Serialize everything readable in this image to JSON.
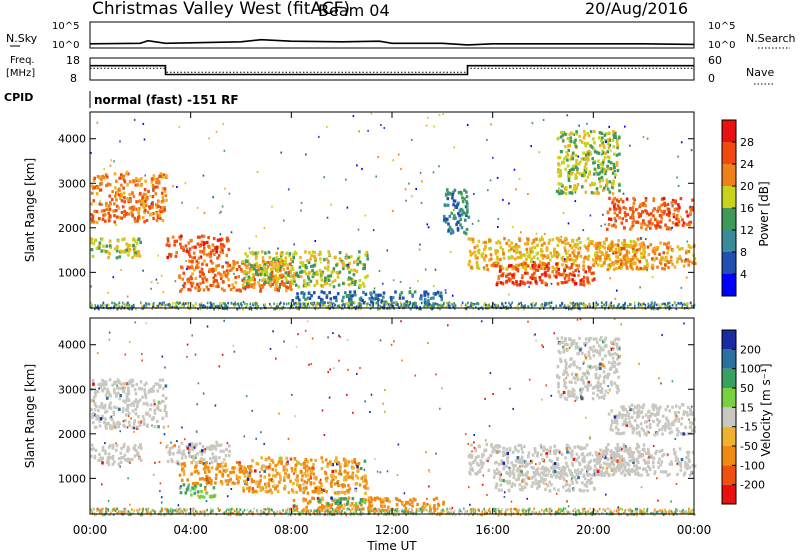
{
  "header": {
    "station": "Christmas Valley West (fitACF)",
    "beam": "Beam 04",
    "date": "20/Aug/2016"
  },
  "chart_data": [
    {
      "id": "noise",
      "type": "line",
      "left_label": "N.Sky",
      "right_label": "N.Search",
      "left_ticks": [
        "10^5",
        "10^0"
      ],
      "right_ticks": [
        "10^5",
        "10^0"
      ],
      "x": [
        0,
        2,
        2.3,
        3,
        4,
        6,
        6.8,
        8,
        10,
        11.5,
        12,
        14,
        15,
        16,
        18,
        20,
        22,
        24
      ],
      "sky_log": [
        0.8,
        0.9,
        1.4,
        0.9,
        1.0,
        1.2,
        1.6,
        1.3,
        1.2,
        1.3,
        0.9,
        0.9,
        0.6,
        0.8,
        0.8,
        0.8,
        0.8,
        0.7
      ],
      "ylim": [
        0,
        5
      ]
    },
    {
      "id": "frequency",
      "type": "line",
      "left_label_line1": "Freq.",
      "left_label_line2": "[MHz]",
      "right_label": "Nave",
      "left_ticks": [
        "18",
        "8"
      ],
      "right_ticks": [
        "60",
        "0"
      ],
      "steps": [
        {
          "x0": 0,
          "x1": 3,
          "freq": 14.5
        },
        {
          "x0": 3,
          "x1": 15,
          "freq": 10.5
        },
        {
          "x0": 15,
          "x1": 24,
          "freq": 14.5
        }
      ],
      "freq_lim": [
        8,
        18
      ],
      "nave": [
        {
          "x0": 0,
          "x1": 3,
          "value": 32
        },
        {
          "x0": 3,
          "x1": 15,
          "value": 21
        },
        {
          "x0": 15,
          "x1": 24,
          "value": 32
        }
      ],
      "nave_lim": [
        0,
        60
      ]
    },
    {
      "id": "cpid",
      "type": "table",
      "label": "CPID",
      "value": "normal (fast) -151 RF"
    },
    {
      "id": "power",
      "type": "heatmap",
      "ylabel": "Slant Range [km]",
      "yticks": [
        "1000",
        "2000",
        "3000",
        "4000"
      ],
      "ylim": [
        200,
        4600
      ],
      "xlim": [
        0,
        24
      ],
      "colorbar_label": "Power [dB]",
      "colorbar_ticks": [
        "4",
        "8",
        "12",
        "16",
        "20",
        "24",
        "28"
      ],
      "colorbar_range": [
        0,
        32
      ],
      "regions": [
        {
          "t0": 0.0,
          "t1": 3.0,
          "r0": 2150,
          "r1": 3250,
          "level": 24
        },
        {
          "t0": 0.0,
          "t1": 2.0,
          "r0": 1350,
          "r1": 1800,
          "level": 18
        },
        {
          "t0": 3.0,
          "t1": 5.5,
          "r0": 1350,
          "r1": 1850,
          "level": 26
        },
        {
          "t0": 3.5,
          "t1": 8.0,
          "r0": 600,
          "r1": 1300,
          "level": 25
        },
        {
          "t0": 6.0,
          "t1": 11.0,
          "r0": 700,
          "r1": 1500,
          "level": 17
        },
        {
          "t0": 8.0,
          "t1": 14.0,
          "r0": 300,
          "r1": 600,
          "level": 10
        },
        {
          "t0": 14.0,
          "t1": 15.0,
          "r0": 1900,
          "r1": 2900,
          "level": 12
        },
        {
          "t0": 15.0,
          "t1": 22.0,
          "r0": 1100,
          "r1": 1800,
          "level": 20
        },
        {
          "t0": 16.0,
          "t1": 20.0,
          "r0": 750,
          "r1": 1250,
          "level": 27
        },
        {
          "t0": 20.0,
          "t1": 24.0,
          "r0": 1100,
          "r1": 1700,
          "level": 22
        },
        {
          "t0": 20.5,
          "t1": 24.0,
          "r0": 2000,
          "r1": 2700,
          "level": 26
        },
        {
          "t0": 18.5,
          "t1": 21.0,
          "r0": 2800,
          "r1": 4200,
          "level": 17
        }
      ]
    },
    {
      "id": "velocity",
      "type": "heatmap",
      "ylabel": "Slant Range [km]",
      "yticks": [
        "1000",
        "2000",
        "3000",
        "4000"
      ],
      "ylim": [
        200,
        4600
      ],
      "xlim": [
        0,
        24
      ],
      "xlabel": "Time UT",
      "xticks": [
        "00:00",
        "04:00",
        "08:00",
        "12:00",
        "16:00",
        "20:00",
        "00:00"
      ],
      "colorbar_label": "Velocity [m s⁻¹]",
      "colorbar_ticks": [
        "-200",
        "-100",
        "-50",
        "-15",
        "15",
        "50",
        "100",
        "200"
      ],
      "regions": [
        {
          "t0": 0.0,
          "t1": 3.0,
          "r0": 2150,
          "r1": 3250,
          "level": 0
        },
        {
          "t0": 0.0,
          "t1": 2.0,
          "r0": 1350,
          "r1": 1800,
          "level": 0
        },
        {
          "t0": 3.0,
          "t1": 5.5,
          "r0": 1350,
          "r1": 1850,
          "level": 0
        },
        {
          "t0": 3.5,
          "t1": 6.5,
          "r0": 900,
          "r1": 1400,
          "level": -40
        },
        {
          "t0": 3.5,
          "t1": 5.0,
          "r0": 600,
          "r1": 900,
          "level": 30
        },
        {
          "t0": 6.0,
          "t1": 11.0,
          "r0": 700,
          "r1": 1500,
          "level": -30
        },
        {
          "t0": 8.0,
          "t1": 14.0,
          "r0": 300,
          "r1": 600,
          "level": -40
        },
        {
          "t0": 9.0,
          "t1": 11.0,
          "r0": 450,
          "r1": 600,
          "level": 40
        },
        {
          "t0": 15.0,
          "t1": 22.0,
          "r0": 1100,
          "r1": 1800,
          "level": 0
        },
        {
          "t0": 16.0,
          "t1": 20.0,
          "r0": 750,
          "r1": 1250,
          "level": 0
        },
        {
          "t0": 20.0,
          "t1": 24.0,
          "r0": 1100,
          "r1": 1700,
          "level": 0
        },
        {
          "t0": 20.5,
          "t1": 24.0,
          "r0": 2000,
          "r1": 2700,
          "level": 0
        },
        {
          "t0": 18.5,
          "t1": 21.0,
          "r0": 2800,
          "r1": 4200,
          "level": 0
        }
      ]
    }
  ]
}
